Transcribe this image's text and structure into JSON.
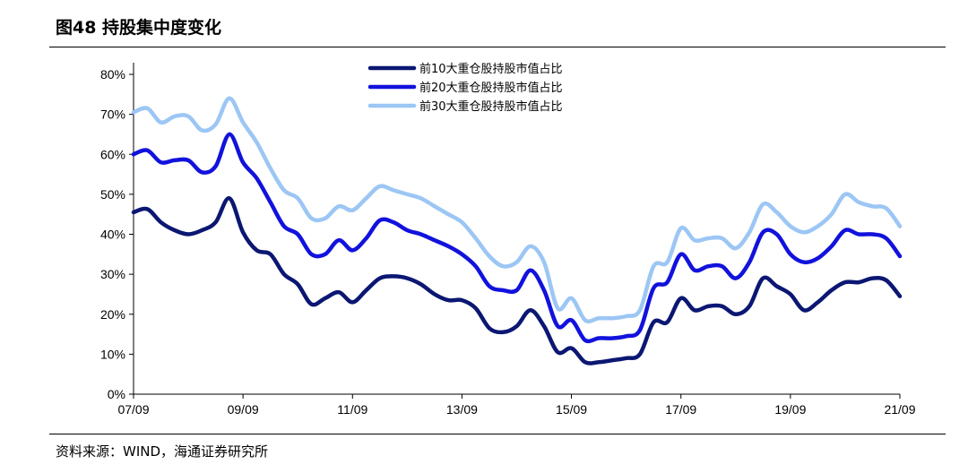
{
  "header": {
    "title": "图48 持股集中度变化"
  },
  "footer": {
    "source": "资料来源：WIND，海通证券研究所"
  },
  "chart_data": {
    "type": "line",
    "ylim": [
      0,
      80
    ],
    "y_ticks": [
      "0%",
      "10%",
      "20%",
      "30%",
      "40%",
      "50%",
      "60%",
      "70%",
      "80%"
    ],
    "x_ticks": [
      "07/09",
      "09/09",
      "11/09",
      "13/09",
      "15/09",
      "17/09",
      "19/09",
      "21/09"
    ],
    "legend_position": "top-center",
    "x": [
      "07/09",
      "07/12",
      "08/03",
      "08/06",
      "08/09",
      "08/12",
      "09/03",
      "09/06",
      "09/09",
      "09/12",
      "10/03",
      "10/06",
      "10/09",
      "10/12",
      "11/03",
      "11/06",
      "11/09",
      "11/12",
      "12/03",
      "12/06",
      "12/09",
      "12/12",
      "13/03",
      "13/06",
      "13/09",
      "13/12",
      "14/03",
      "14/06",
      "14/09",
      "14/12",
      "15/03",
      "15/06",
      "15/09",
      "15/12",
      "16/03",
      "16/06",
      "16/09",
      "16/12",
      "17/03",
      "17/06",
      "17/09",
      "17/12",
      "18/03",
      "18/06",
      "18/09",
      "18/12",
      "19/03",
      "19/06",
      "19/09",
      "19/12",
      "20/03",
      "20/06",
      "20/09",
      "20/12",
      "21/03",
      "21/06",
      "21/09"
    ],
    "series": [
      {
        "name": "前10大重仓股持股市值占比",
        "color": "#0b1772",
        "values": [
          45.5,
          46.3,
          43,
          41,
          40,
          41,
          43,
          49,
          40.5,
          36,
          35,
          30,
          27.5,
          22.5,
          24,
          25.5,
          23,
          26,
          29,
          29.5,
          29,
          27.5,
          25,
          23.5,
          23.5,
          21.5,
          16.5,
          15.5,
          17,
          21,
          17,
          10.5,
          11.5,
          8,
          8,
          8.5,
          9,
          10,
          18,
          18,
          24,
          21,
          22,
          22,
          20,
          22,
          29,
          27,
          25,
          21,
          23,
          26,
          28,
          28,
          29,
          28.5,
          24.5
        ]
      },
      {
        "name": "前20大重仓股持股市值占比",
        "color": "#1212dd",
        "values": [
          60,
          61,
          58,
          58.5,
          58.5,
          55.5,
          57,
          65,
          58,
          54,
          48,
          42,
          40,
          35,
          35,
          38.5,
          36,
          39,
          43.5,
          43,
          41,
          40,
          38.5,
          37,
          35,
          32,
          27,
          26,
          26,
          31,
          26,
          17,
          18.5,
          13.5,
          14,
          14,
          14.5,
          16,
          26.5,
          28,
          35,
          31,
          32,
          32,
          29,
          33,
          40.5,
          40,
          35,
          33,
          34,
          37,
          41,
          40,
          40,
          39,
          34.5
        ]
      },
      {
        "name": "前30大重仓股持股市值占比",
        "color": "#9cc6f4",
        "values": [
          70.5,
          71.5,
          68,
          69.5,
          69.5,
          66,
          67.5,
          74,
          68,
          63,
          56.5,
          51,
          49,
          44,
          44,
          47,
          46,
          49,
          52,
          51,
          50,
          49,
          47,
          45,
          43,
          39,
          34.5,
          32,
          33,
          37,
          33,
          21.5,
          24,
          18.5,
          19,
          19,
          19.5,
          21,
          32,
          33,
          41.5,
          38.5,
          39,
          39,
          36.5,
          40.5,
          47.5,
          45.5,
          42,
          40.5,
          42,
          45,
          50,
          48,
          47,
          46.5,
          42
        ]
      }
    ]
  }
}
